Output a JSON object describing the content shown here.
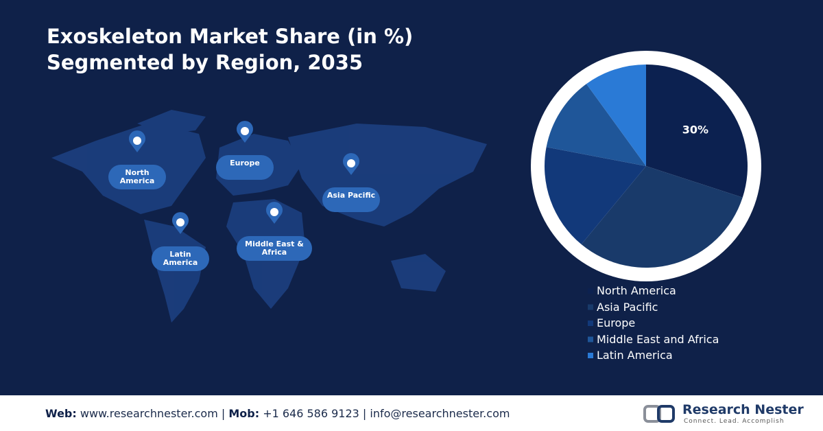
{
  "chart_data": {
    "type": "pie",
    "title": "Exoskeleton Market Share (in %) Segmented by Region, 2035",
    "categories": [
      "North America",
      "Asia Pacific",
      "Europe",
      "Middle East and Africa",
      "Latin America"
    ],
    "values": [
      30,
      31,
      17,
      12,
      10
    ],
    "value_labels": [
      "30%",
      null,
      null,
      null,
      null
    ],
    "colors": [
      "#0c2150",
      "#193a6a",
      "#12397a",
      "#1f5699",
      "#2a7ad6"
    ],
    "legend": "bottom-right"
  },
  "map_labels": [
    "North America",
    "Europe",
    "Asia Pacific",
    "Middle East & Africa",
    "Latin America"
  ],
  "footer": {
    "web_label": "Web:",
    "web": "www.researchnester.com",
    "mob_label": "Mob:",
    "mob": "+1 646 586 9123",
    "email": "info@researchnester.com",
    "logo": "Research Nester",
    "tagline": "Connect. Lead. Accomplish"
  }
}
